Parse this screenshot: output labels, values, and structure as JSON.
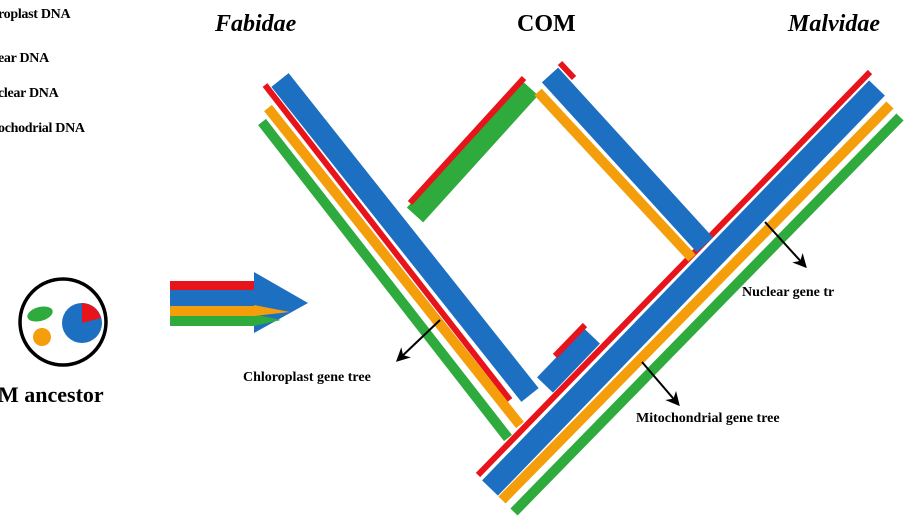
{
  "legend": {
    "items": [
      {
        "label": "roplast DNA",
        "color": "#e8141c"
      },
      {
        "label": "ear DNA",
        "color": "#1c6fc1"
      },
      {
        "label": "clear DNA",
        "color": "#f59e0b"
      },
      {
        "label": "ochodrial DNA",
        "color": "#2eab3c"
      }
    ]
  },
  "clades": {
    "left": "Fabidae",
    "middle": "COM",
    "right": "Malvidae"
  },
  "ancestor_label": "M ancestor",
  "gene_trees": {
    "chloroplast": "Chloroplast gene tree",
    "nuclear": "Nuclear gene tr",
    "mitochondrial": "Mitochondrial  gene tree"
  },
  "colors": {
    "red": "#e8141c",
    "blue": "#1c6fc1",
    "orange": "#f59e0b",
    "green": "#2eab3c"
  }
}
